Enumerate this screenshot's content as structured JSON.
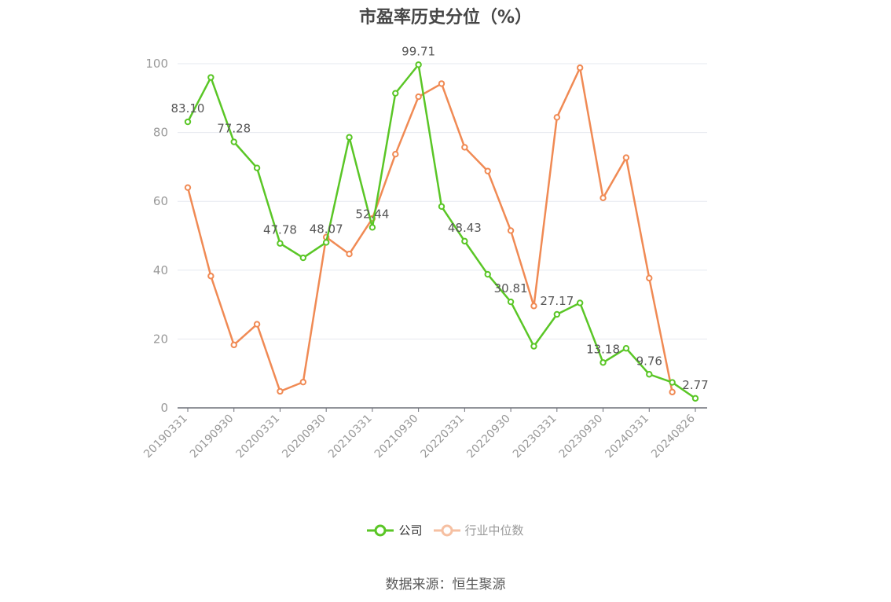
{
  "title": "市盈率历史分位（%）",
  "source": "数据来源：恒生聚源",
  "colors": {
    "company": "#5ac626",
    "industry": "#f08a54",
    "grid": "#e6e8ef",
    "axis": "#999999",
    "label": "#555555"
  },
  "chart_data": {
    "type": "line",
    "title": "市盈率历史分位（%）",
    "xlabel": "",
    "ylabel": "",
    "ylim": [
      0,
      100
    ],
    "yticks": [
      0,
      20,
      40,
      60,
      80,
      100
    ],
    "x": [
      "20190331",
      "20190630",
      "20190930",
      "20191231",
      "20200331",
      "20200630",
      "20200930",
      "20201231",
      "20210331",
      "20210630",
      "20210930",
      "20211231",
      "20220331",
      "20220630",
      "20220930",
      "20221231",
      "20230331",
      "20230630",
      "20230930",
      "20231231",
      "20240331",
      "20240630",
      "20240826"
    ],
    "x_tick_labels": [
      "20190331",
      "20190930",
      "20200331",
      "20200930",
      "20210331",
      "20210930",
      "20220331",
      "20220930",
      "20230331",
      "20230930",
      "20240331",
      "20240826"
    ],
    "x_tick_indices": [
      0,
      2,
      4,
      6,
      8,
      10,
      12,
      14,
      16,
      18,
      20,
      22
    ],
    "grid": true,
    "legend_position": "bottom",
    "series": [
      {
        "name": "公司",
        "color": "#5ac626",
        "values": [
          83.1,
          96.0,
          77.28,
          69.7,
          47.78,
          43.6,
          48.07,
          78.6,
          52.44,
          91.4,
          99.71,
          58.5,
          48.43,
          38.8,
          30.81,
          17.9,
          27.17,
          30.5,
          13.18,
          17.3,
          9.76,
          7.4,
          2.77
        ],
        "labels": {
          "0": "83.10",
          "2": "77.28",
          "4": "47.78",
          "6": "48.07",
          "8": "52.44",
          "10": "99.71",
          "12": "48.43",
          "14": "30.81",
          "16": "27.17",
          "18": "13.18",
          "20": "9.76",
          "22": "2.77"
        }
      },
      {
        "name": "行业中位数",
        "color": "#f08a54",
        "values": [
          64.0,
          38.3,
          18.3,
          24.3,
          4.8,
          7.5,
          49.6,
          44.7,
          55.0,
          73.7,
          90.4,
          94.2,
          75.7,
          68.8,
          51.5,
          29.6,
          84.4,
          98.8,
          61.0,
          72.7,
          37.7,
          4.6,
          null
        ]
      }
    ]
  }
}
